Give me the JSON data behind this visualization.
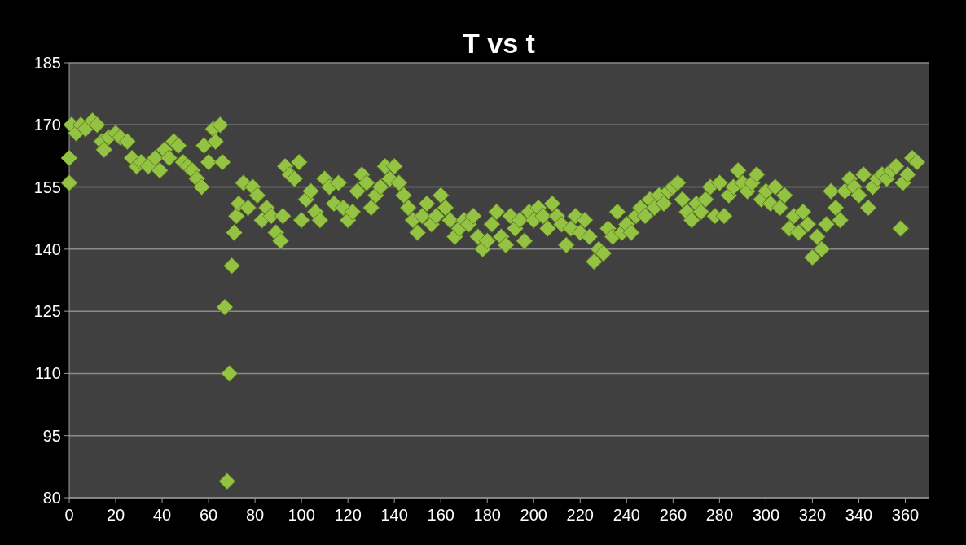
{
  "chart_data": {
    "type": "scatter",
    "title": "T vs t",
    "xlim": [
      0,
      370
    ],
    "xticks": [
      0,
      20,
      40,
      60,
      80,
      100,
      120,
      140,
      160,
      180,
      200,
      220,
      240,
      260,
      280,
      300,
      320,
      340,
      360
    ],
    "ylim": [
      80,
      185
    ],
    "yticks": [
      80,
      95,
      110,
      125,
      140,
      155,
      170,
      185
    ],
    "grid": "y",
    "marker": "diamond",
    "series": [
      {
        "color": "#94c243",
        "x": [
          0,
          0,
          1,
          3,
          5,
          7,
          10,
          12,
          14,
          15,
          17,
          20,
          22,
          25,
          27,
          29,
          31,
          34,
          37,
          39,
          41,
          43,
          45,
          47,
          49,
          51,
          53,
          55,
          57,
          58,
          60,
          62,
          63,
          65,
          66,
          67,
          68,
          69,
          70,
          71,
          72,
          73,
          75,
          77,
          79,
          81,
          83,
          85,
          87,
          89,
          91,
          92,
          93,
          95,
          97,
          99,
          100,
          102,
          104,
          106,
          108,
          110,
          112,
          114,
          116,
          118,
          120,
          122,
          124,
          126,
          128,
          130,
          132,
          134,
          136,
          138,
          140,
          142,
          144,
          146,
          148,
          150,
          152,
          154,
          156,
          158,
          160,
          162,
          164,
          166,
          168,
          170,
          172,
          174,
          176,
          178,
          180,
          182,
          184,
          186,
          188,
          190,
          192,
          194,
          196,
          198,
          200,
          202,
          204,
          206,
          208,
          210,
          212,
          214,
          216,
          218,
          220,
          222,
          224,
          226,
          228,
          230,
          232,
          234,
          236,
          238,
          240,
          242,
          244,
          246,
          248,
          250,
          252,
          254,
          256,
          258,
          260,
          262,
          264,
          266,
          268,
          270,
          272,
          274,
          276,
          278,
          280,
          282,
          284,
          286,
          288,
          290,
          292,
          294,
          296,
          298,
          300,
          302,
          304,
          306,
          308,
          310,
          312,
          314,
          316,
          318,
          320,
          322,
          324,
          326,
          328,
          330,
          332,
          334,
          336,
          338,
          340,
          342,
          344,
          346,
          348,
          350,
          352,
          354,
          356,
          358,
          359,
          361,
          363,
          365
        ],
        "values": [
          156,
          162,
          170,
          168,
          170,
          169,
          171,
          170,
          166,
          164,
          167,
          168,
          167,
          166,
          162,
          160,
          161,
          160,
          162,
          159,
          164,
          162,
          166,
          165,
          161,
          160,
          159,
          157,
          155,
          165,
          161,
          169,
          166,
          170,
          161,
          126,
          84,
          110,
          136,
          144,
          148,
          151,
          156,
          150,
          155,
          153,
          147,
          150,
          148,
          144,
          142,
          148,
          160,
          158,
          157,
          161,
          147,
          152,
          154,
          149,
          147,
          157,
          155,
          151,
          156,
          150,
          147,
          149,
          154,
          158,
          156,
          150,
          153,
          155,
          160,
          157,
          160,
          156,
          153,
          150,
          147,
          144,
          148,
          151,
          146,
          148,
          153,
          150,
          147,
          143,
          145,
          147,
          146,
          148,
          143,
          140,
          142,
          146,
          149,
          143,
          141,
          148,
          145,
          147,
          142,
          149,
          147,
          150,
          148,
          145,
          151,
          148,
          146,
          141,
          145,
          148,
          144,
          147,
          143,
          137,
          140,
          139,
          145,
          143,
          149,
          144,
          146,
          144,
          148,
          150,
          148,
          152,
          150,
          153,
          151,
          154,
          155,
          156,
          152,
          149,
          147,
          151,
          149,
          152,
          155,
          148,
          156,
          148,
          153,
          155,
          159,
          156,
          154,
          156,
          158,
          152,
          154,
          151,
          155,
          150,
          153,
          145,
          148,
          144,
          149,
          146,
          138,
          143,
          140,
          146,
          154,
          150,
          147,
          154,
          157,
          155,
          153,
          158,
          150,
          155,
          157,
          158,
          157,
          159,
          160,
          145,
          156,
          158,
          162,
          161
        ]
      }
    ]
  }
}
